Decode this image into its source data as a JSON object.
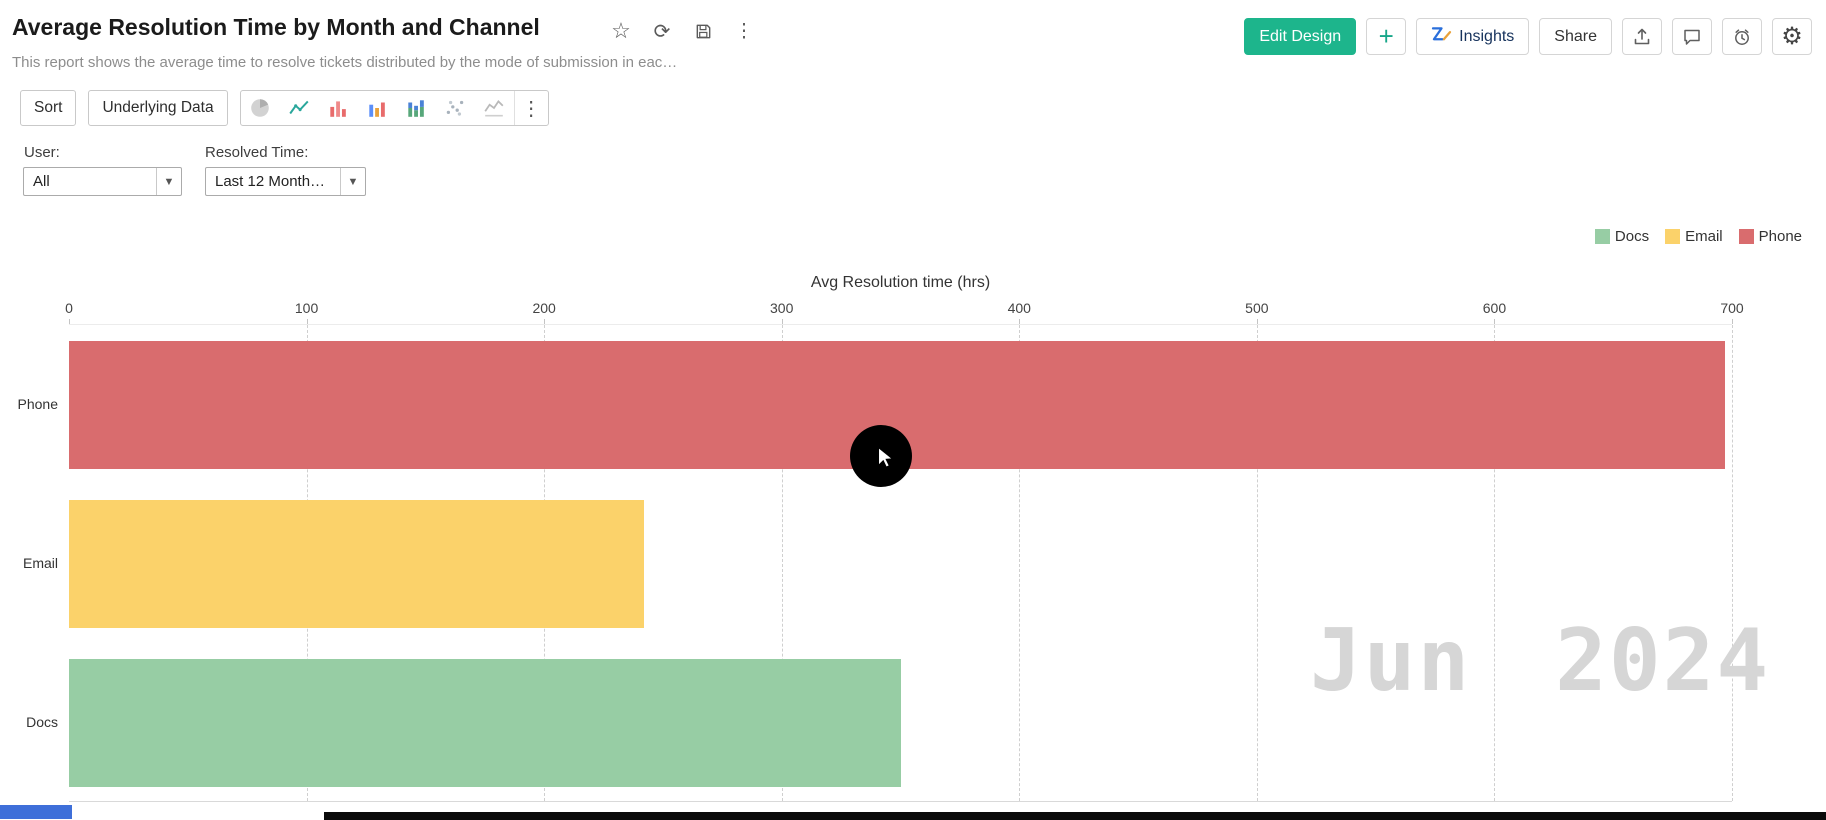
{
  "header": {
    "title": "Average Resolution Time by Month and Channel",
    "subtitle": "This report shows the average time to resolve tickets distributed by the mode of submission in eac…",
    "actions": {
      "edit_design": "Edit Design",
      "add": "+",
      "insights": "Insights",
      "share": "Share"
    }
  },
  "toolbar": {
    "sort": "Sort",
    "underlying_data": "Underlying Data"
  },
  "filters": {
    "user_label": "User:",
    "user_value": "All",
    "resolved_label": "Resolved Time:",
    "resolved_value": "Last 12 Month…"
  },
  "chart_data": {
    "type": "bar",
    "orientation": "horizontal",
    "title": "Avg Resolution time (hrs)",
    "categories": [
      "Phone",
      "Email",
      "Docs"
    ],
    "values": [
      697,
      242,
      350
    ],
    "colors": {
      "Phone": "#d96c6e",
      "Email": "#fbd26a",
      "Docs": "#97cda4"
    },
    "legend": [
      {
        "label": "Docs",
        "color": "#97cda4"
      },
      {
        "label": "Email",
        "color": "#fbd26a"
      },
      {
        "label": "Phone",
        "color": "#d96c6e"
      }
    ],
    "x_ticks": [
      0,
      100,
      200,
      300,
      400,
      500,
      600,
      700
    ],
    "xlim": [
      0,
      700
    ],
    "grid": "dashed-vertical",
    "legend_position": "top-right",
    "watermark": "Jun 2024"
  }
}
